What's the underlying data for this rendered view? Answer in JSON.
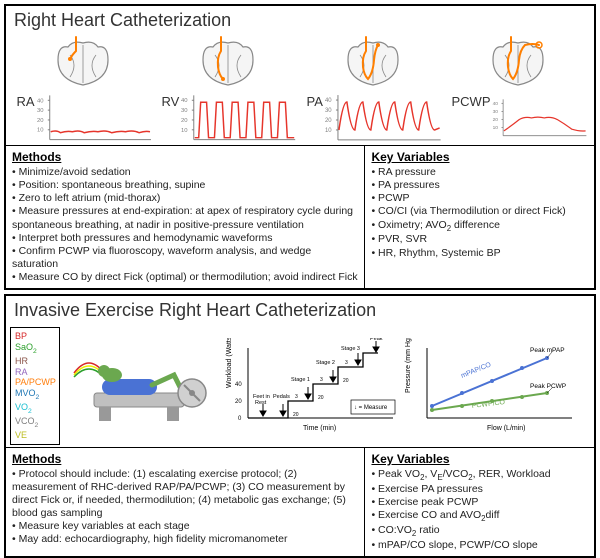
{
  "colors": {
    "border": "#000000",
    "text": "#222222",
    "heart_outline": "#888888",
    "heart_fill": "#f0f0f0",
    "catheter": "#ff7f00",
    "waveform": "#e6352b",
    "axis": "#808080",
    "monitor_bp": "#d62728",
    "monitor_sao2": "#2ca02c",
    "monitor_hr": "#8c564b",
    "monitor_ra": "#9467bd",
    "monitor_papcwp": "#ff7f0e",
    "monitor_mvo2": "#1f77b4",
    "monitor_vo2": "#17becf",
    "monitor_vco2": "#7f7f7f",
    "monitor_ve": "#bcbd22",
    "bike_body": "#c0c0c0",
    "bike_person": "#6ba84f",
    "bike_blanket": "#4a72d4",
    "mpap_line": "#4a72d4",
    "pcwp_line": "#6ba84f"
  },
  "fonts": {
    "title_size": 18,
    "label_size": 13,
    "heading_size": 12,
    "body_size": 10.5,
    "monitor_size": 9
  },
  "panel1": {
    "title": "Right Heart Catheterization",
    "sites": [
      {
        "label": "RA",
        "wave_type": "ra"
      },
      {
        "label": "RV",
        "wave_type": "rv"
      },
      {
        "label": "PA",
        "wave_type": "pa"
      },
      {
        "label": "PCWP",
        "wave_type": "pcwp"
      }
    ],
    "waveform_axis": {
      "ymax": 40,
      "yticks": [
        10,
        20,
        30,
        40
      ]
    },
    "methods_heading": "Methods",
    "methods": [
      "Minimize/avoid sedation",
      "Position: spontaneous breathing, supine",
      "Zero to left atrium (mid-thorax)",
      "Measure pressures at end-expiration: at apex of respiratory cycle during spontaneous breathing, at nadir in positive-pressure ventilation",
      "Interpret both pressures and hemodynamic waveforms",
      "Confirm PCWP via fluoroscopy, waveform analysis, and wedge saturation",
      "Measure CO by direct Fick (optimal) or thermodilution; avoid indirect Fick"
    ],
    "keyvars_heading": "Key Variables",
    "keyvars": [
      "RA pressure",
      "PA pressures",
      "PCWP",
      "CO/CI (via Thermodilution or direct Fick)",
      "Oximetry; AVO₂ difference",
      "PVR, SVR",
      "HR, Rhythm, Systemic BP"
    ]
  },
  "panel2": {
    "title": "Invasive Exercise Right Heart Catheterization",
    "monitor": [
      {
        "label": "BP",
        "color": "#d62728"
      },
      {
        "label": "SaO₂",
        "color": "#2ca02c"
      },
      {
        "label": "HR",
        "color": "#8c564b"
      },
      {
        "label": "RA",
        "color": "#9467bd"
      },
      {
        "label": "PA/PCWP",
        "color": "#ff7f0e"
      },
      {
        "label": "MVO₂",
        "color": "#1f77b4"
      },
      {
        "label": "VO₂",
        "color": "#17becf"
      },
      {
        "label": "VCO₂",
        "color": "#7f7f7f"
      },
      {
        "label": "VE",
        "color": "#bcbd22"
      }
    ],
    "protocol": {
      "xlabel": "Time (min)",
      "ylabel": "Workload (Watts)",
      "stages": [
        "Feet in Rest",
        "Pedals",
        "Stage 1",
        "Stage 2",
        "Stage 3"
      ],
      "peak_label": "Peak",
      "measure_legend": "↓ = Measure",
      "ytick_values": [
        0,
        20,
        40
      ],
      "step_watts": 20,
      "step_min_label": "3"
    },
    "flow_chart": {
      "xlabel": "Flow (L/min)",
      "ylabel": "Pressure (mm Hg)",
      "lines": [
        {
          "label": "mPAP/CO",
          "color": "#4a72d4",
          "slope": "high",
          "peak_label": "Peak mPAP"
        },
        {
          "label": "PCWP/CO",
          "color": "#6ba84f",
          "slope": "low",
          "peak_label": "Peak PCWP"
        }
      ]
    },
    "methods_heading": "Methods",
    "methods": [
      "Protocol should include: (1) escalating exercise protocol; (2) measurement of RHC-derived RAP/PA/PCWP; (3) CO measurement by direct Fick or, if needed, thermodilution; (4) metabolic gas exchange; (5) blood gas sampling",
      "Measure key variables at each stage",
      "May add: echocardiography, high fidelity micromanometer"
    ],
    "keyvars_heading": "Key Variables",
    "keyvars": [
      "Peak VO₂, V_E/VCO₂, RER, Workload",
      "Exercise PA pressures",
      "Exercise peak PCWP",
      "Exercise CO and AVO₂diff",
      "CO:VO₂ ratio",
      "mPAP/CO slope, PCWP/CO slope"
    ]
  }
}
